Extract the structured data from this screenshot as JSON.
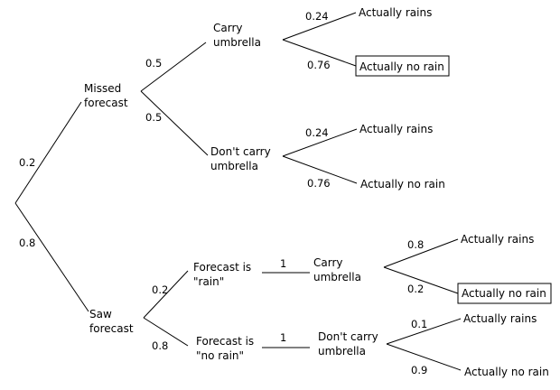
{
  "nodes": {
    "missed_forecast": [
      "Missed",
      "forecast"
    ],
    "saw_forecast": [
      "Saw",
      "forecast"
    ],
    "mf_carry": [
      "Carry",
      "umbrella"
    ],
    "mf_dont_carry": [
      "Don't carry",
      "umbrella"
    ],
    "sf_forecast_rain": [
      "Forecast is",
      "\"rain\""
    ],
    "sf_forecast_norain": [
      "Forecast is",
      "\"no rain\""
    ],
    "sf_carry": [
      "Carry",
      "umbrella"
    ],
    "sf_dont_carry": [
      "Don't carry",
      "umbrella"
    ]
  },
  "outcomes": {
    "mf_carry_rains": "Actually rains",
    "mf_carry_norain": "Actually no rain",
    "mf_dont_rains": "Actually rains",
    "mf_dont_norain": "Actually no rain",
    "sf_carry_rains": "Actually rains",
    "sf_carry_norain": "Actually no rain",
    "sf_dont_rains": "Actually rains",
    "sf_dont_norain": "Actually no rain"
  },
  "probabilities": {
    "root_missed": "0.2",
    "root_saw": "0.8",
    "missed_carry": "0.5",
    "missed_dont": "0.5",
    "mf_carry_rains": "0.24",
    "mf_carry_norain": "0.76",
    "mf_dont_rains": "0.24",
    "mf_dont_norain": "0.76",
    "saw_forecast_rain": "0.2",
    "saw_forecast_norain": "0.8",
    "forecast_rain_carry": "1",
    "forecast_norain_dont": "1",
    "sf_carry_rains": "0.8",
    "sf_carry_norain": "0.2",
    "sf_dont_rains": "0.1",
    "sf_dont_norain": "0.9"
  }
}
